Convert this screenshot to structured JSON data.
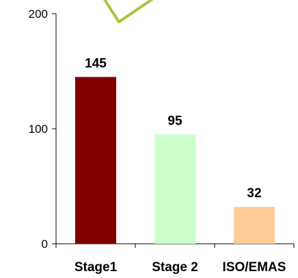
{
  "chart_data": {
    "type": "bar",
    "categories": [
      "Stage1",
      "Stage 2",
      "ISO/EMAS"
    ],
    "values": [
      145,
      95,
      32
    ],
    "data_labels": [
      "145",
      "95",
      "32"
    ],
    "bar_colors": [
      "#800000",
      "#ccffcc",
      "#ffcc99"
    ],
    "ylim": [
      0,
      200
    ],
    "yticks": [
      0,
      100,
      200
    ],
    "ytick_labels": [
      "0",
      "100",
      "200"
    ],
    "grid": false,
    "title": "",
    "xlabel": "",
    "ylabel": "",
    "decoration": {
      "type": "checkmark",
      "color": "#a8c43a",
      "icon": "checkmark-icon"
    }
  }
}
